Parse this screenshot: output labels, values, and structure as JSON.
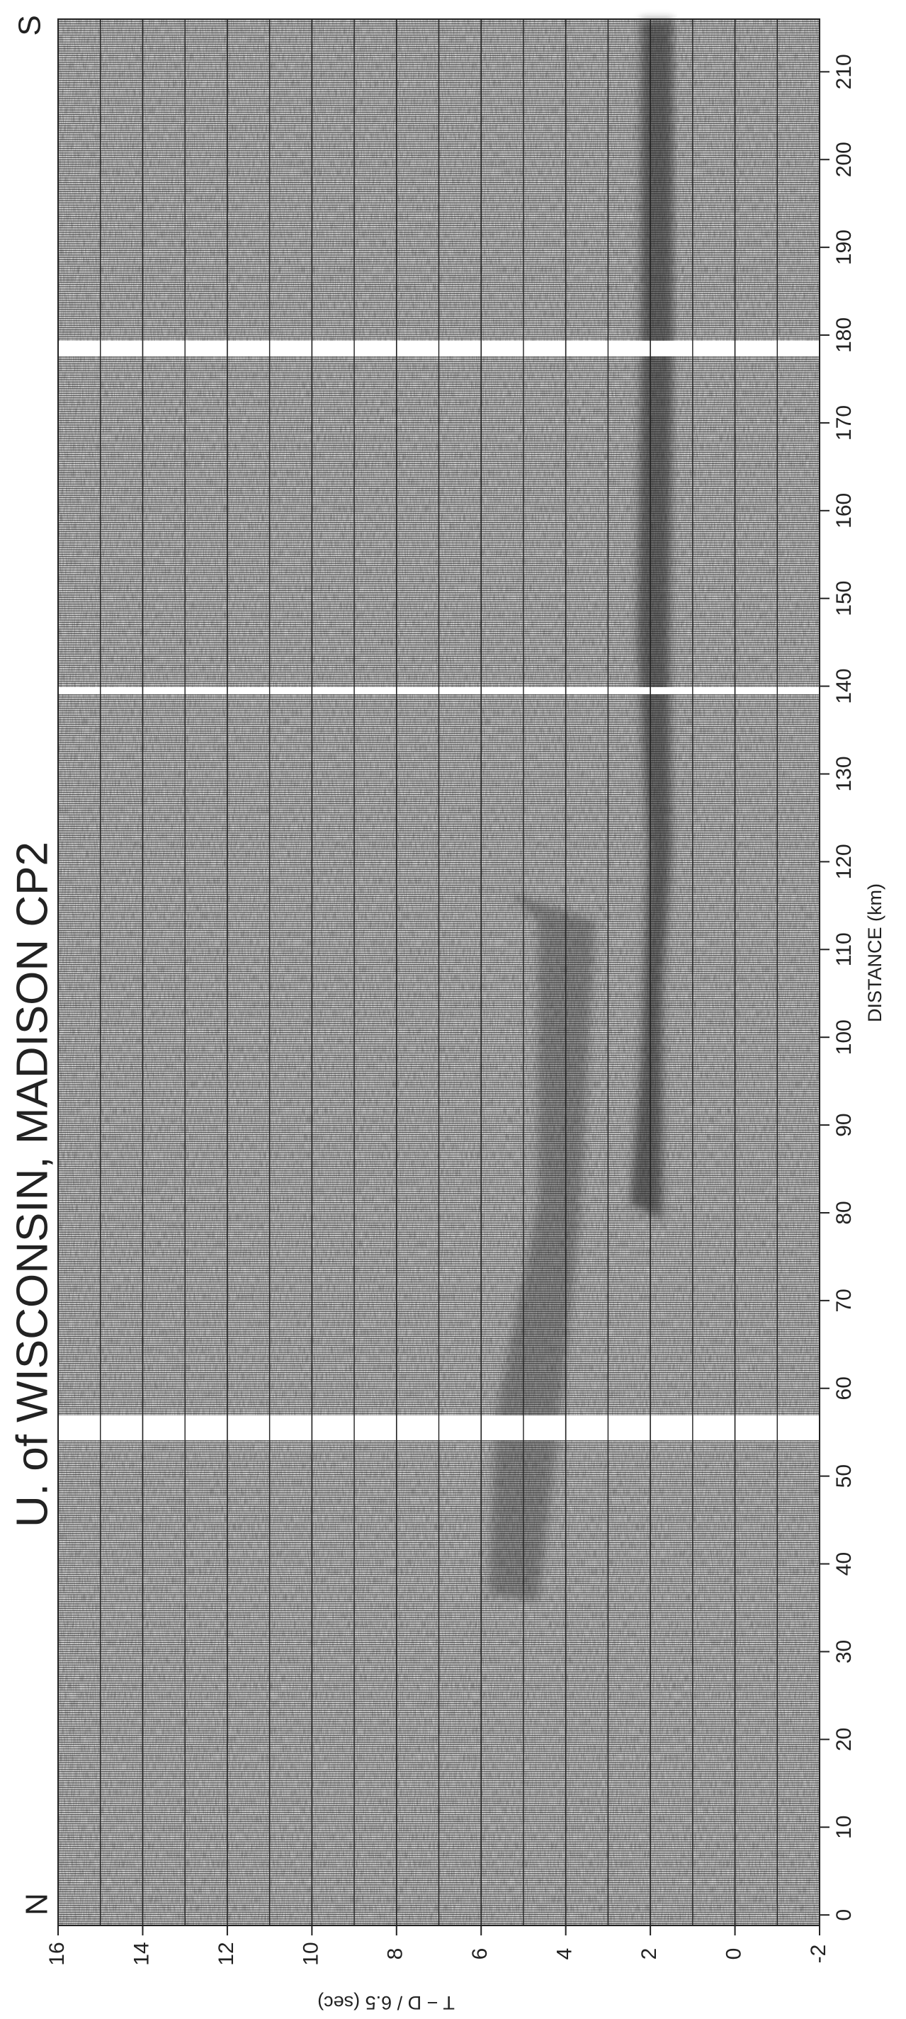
{
  "chart_data": {
    "type": "record-section",
    "title": "U. of WISCONSIN, MADISON CP2",
    "xlabel": "DISTANCE (km)",
    "ylabel": "T − D / 6.5 (sec)",
    "end_labels": [
      "N",
      "S"
    ],
    "xlim": [
      -1.2,
      216
    ],
    "xticks": [
      0,
      10,
      20,
      30,
      40,
      50,
      60,
      70,
      80,
      90,
      100,
      110,
      120,
      130,
      140,
      150,
      160,
      170,
      180,
      190,
      200,
      210
    ],
    "ylim": [
      -2,
      16
    ],
    "yticks": [
      -2,
      0,
      2,
      4,
      6,
      8,
      10,
      12,
      14,
      16
    ],
    "grid": true
  }
}
